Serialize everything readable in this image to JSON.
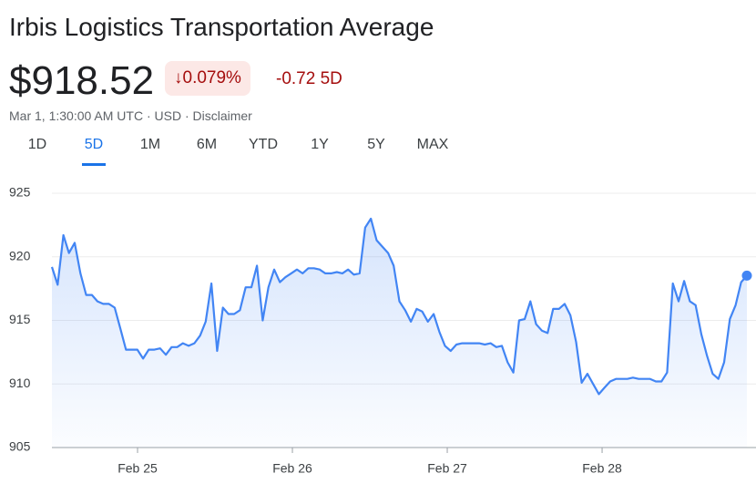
{
  "header": {
    "title": "Irbis Logistics Transportation Average",
    "price": "$918.52",
    "change_percent": "0.079%",
    "change_value": "-0.72",
    "change_period": "5D",
    "timestamp": "Mar 1, 1:30:00 AM UTC · USD · Disclaimer"
  },
  "tabs": {
    "items": [
      "1D",
      "5D",
      "1M",
      "6M",
      "YTD",
      "1Y",
      "5Y",
      "MAX"
    ],
    "active": "5D"
  },
  "chart_data": {
    "type": "line",
    "color": "#4285f4",
    "grid": true,
    "xlim": [
      24.447,
      28.935
    ],
    "xticks": [
      {
        "value": 25,
        "label": "Feb 25"
      },
      {
        "value": 26,
        "label": "Feb 26"
      },
      {
        "value": 27,
        "label": "Feb 27"
      },
      {
        "value": 28,
        "label": "Feb 28"
      }
    ],
    "ylim": [
      905,
      925
    ],
    "yticks": [
      905,
      910,
      915,
      920,
      925
    ],
    "series": [
      {
        "name": "Irbis Logistics Transportation Average",
        "color": "#4285f4",
        "x": [
          24.447,
          24.484,
          24.521,
          24.557,
          24.594,
          24.631,
          24.668,
          24.705,
          24.741,
          24.778,
          24.815,
          24.852,
          24.888,
          24.925,
          24.962,
          24.999,
          25.036,
          25.072,
          25.109,
          25.146,
          25.183,
          25.22,
          25.256,
          25.293,
          25.33,
          25.367,
          25.404,
          25.44,
          25.477,
          25.514,
          25.551,
          25.587,
          25.624,
          25.661,
          25.698,
          25.735,
          25.771,
          25.808,
          25.845,
          25.882,
          25.919,
          25.955,
          25.992,
          26.029,
          26.066,
          26.103,
          26.139,
          26.176,
          26.213,
          26.25,
          26.287,
          26.323,
          26.36,
          26.397,
          26.434,
          26.47,
          26.507,
          26.544,
          26.581,
          26.618,
          26.654,
          26.691,
          26.728,
          26.765,
          26.802,
          26.838,
          26.875,
          26.912,
          26.949,
          26.985,
          27.022,
          27.059,
          27.096,
          27.133,
          27.169,
          27.206,
          27.243,
          27.28,
          27.317,
          27.353,
          27.39,
          27.427,
          27.464,
          27.5,
          27.537,
          27.574,
          27.611,
          27.648,
          27.684,
          27.721,
          27.758,
          27.795,
          27.832,
          27.868,
          27.905,
          27.942,
          27.979,
          28.015,
          28.052,
          28.089,
          28.126,
          28.163,
          28.199,
          28.236,
          28.273,
          28.31,
          28.347,
          28.383,
          28.42,
          28.457,
          28.494,
          28.53,
          28.567,
          28.604,
          28.641,
          28.678,
          28.714,
          28.751,
          28.788,
          28.825,
          28.862,
          28.898,
          28.935
        ],
        "values": [
          919.2,
          917.8,
          921.7,
          920.3,
          921.1,
          918.7,
          917.0,
          917.0,
          916.5,
          916.3,
          916.3,
          916.0,
          914.4,
          912.7,
          912.7,
          912.7,
          912.0,
          912.7,
          912.7,
          912.8,
          912.3,
          912.9,
          912.9,
          913.2,
          913.0,
          913.2,
          913.8,
          914.9,
          917.9,
          912.6,
          916.0,
          915.5,
          915.5,
          915.8,
          917.6,
          917.6,
          919.3,
          915.0,
          917.6,
          919.0,
          918.0,
          918.4,
          918.7,
          919.0,
          918.7,
          919.1,
          919.1,
          919.0,
          918.7,
          918.7,
          918.8,
          918.7,
          919.0,
          918.6,
          918.7,
          922.3,
          923.0,
          921.3,
          920.8,
          920.3,
          919.3,
          916.5,
          915.8,
          914.9,
          915.9,
          915.7,
          914.9,
          915.5,
          914.1,
          913.0,
          912.6,
          913.1,
          913.2,
          913.2,
          913.2,
          913.2,
          913.1,
          913.2,
          912.9,
          913.0,
          911.7,
          910.9,
          915.0,
          915.1,
          916.5,
          914.7,
          914.2,
          914.0,
          915.9,
          915.9,
          916.3,
          915.4,
          913.3,
          910.1,
          910.8,
          910.0,
          909.2,
          909.7,
          910.2,
          910.4,
          910.4,
          910.4,
          910.5,
          910.4,
          910.4,
          910.4,
          910.2,
          910.2,
          910.9,
          917.9,
          916.5,
          918.1,
          916.5,
          916.2,
          913.9,
          912.2,
          910.8,
          910.4,
          911.7,
          915.1,
          916.2,
          918.0,
          918.52
        ]
      }
    ]
  }
}
